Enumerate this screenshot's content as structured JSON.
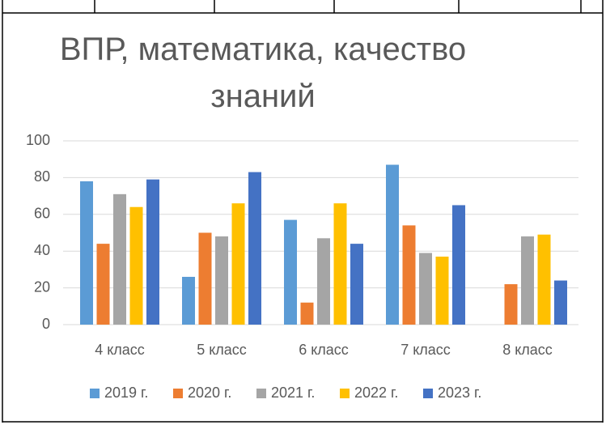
{
  "chart_data": {
    "type": "bar",
    "title": "ВПР, математика, качество знаний",
    "categories": [
      "4 класс",
      "5 класс",
      "6 класс",
      "7 класс",
      "8 класс"
    ],
    "series": [
      {
        "name": "2019 г.",
        "color": "#5b9bd5",
        "values": [
          78,
          26,
          57,
          87,
          null
        ]
      },
      {
        "name": "2020 г.",
        "color": "#ed7d31",
        "values": [
          44,
          50,
          12,
          54,
          22
        ]
      },
      {
        "name": "2021 г.",
        "color": "#a5a5a5",
        "values": [
          71,
          48,
          47,
          39,
          48
        ]
      },
      {
        "name": "2022 г.",
        "color": "#ffc000",
        "values": [
          64,
          66,
          66,
          37,
          49
        ]
      },
      {
        "name": "2023 г.",
        "color": "#4472c4",
        "values": [
          79,
          83,
          44,
          65,
          24
        ]
      }
    ],
    "ylim": [
      0,
      100
    ],
    "yticks": [
      0,
      20,
      40,
      60,
      80,
      100
    ],
    "grid": true,
    "legend": "bottom"
  }
}
